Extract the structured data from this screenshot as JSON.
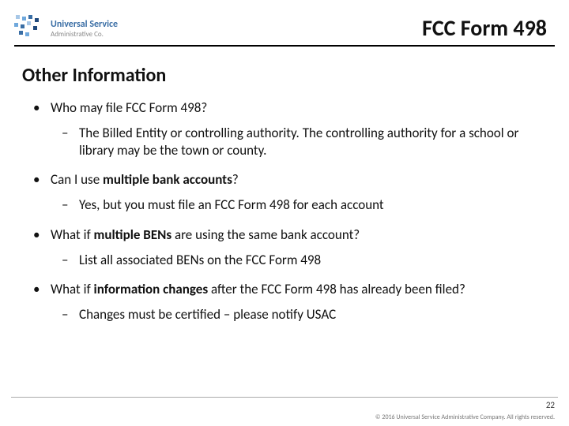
{
  "logo": {
    "line1": "Universal Service",
    "line2": "Administrative Co.",
    "square_colors": [
      "#a7c7e7",
      "#6fa8dc",
      "#3a6ea5",
      "#1f497d",
      "#6fa8dc",
      "#3a6ea5",
      "#a7c7e7",
      "#1f497d",
      "#3a6ea5",
      "#6fa8dc"
    ],
    "square_positions": [
      [
        2,
        0
      ],
      [
        10,
        2
      ],
      [
        18,
        0
      ],
      [
        26,
        4
      ],
      [
        0,
        10
      ],
      [
        8,
        12
      ],
      [
        16,
        8
      ],
      [
        24,
        14
      ],
      [
        6,
        20
      ],
      [
        14,
        22
      ]
    ]
  },
  "page_title": "FCC Form 498",
  "section_title": "Other Information",
  "items": [
    {
      "question_parts": [
        "Who may file FCC Form 498?"
      ],
      "answer_parts": [
        "The Billed Entity or controlling authority.  The controlling authority for a school or library may be the town or county."
      ]
    },
    {
      "question_parts": [
        "Can I use ",
        {
          "b": true,
          "t": "multiple bank accounts"
        },
        "?"
      ],
      "answer_parts": [
        "Yes, but you must file an FCC Form 498 for each account"
      ]
    },
    {
      "question_parts": [
        "What if ",
        {
          "b": true,
          "t": "multiple BENs"
        },
        " are using the same bank account?"
      ],
      "answer_parts": [
        "List all associated BENs on the FCC Form 498"
      ]
    },
    {
      "question_parts": [
        "What if ",
        {
          "b": true,
          "t": "information changes"
        },
        " after the FCC Form 498 has already been filed?"
      ],
      "answer_parts": [
        "Changes must be certified – please notify USAC"
      ]
    }
  ],
  "page_number": "22",
  "copyright": "© 2016 Universal Service Administrative Company. All rights reserved.",
  "colors": {
    "rule": "#000000",
    "text": "#111111",
    "footer_rule": "#aaaaaa"
  }
}
